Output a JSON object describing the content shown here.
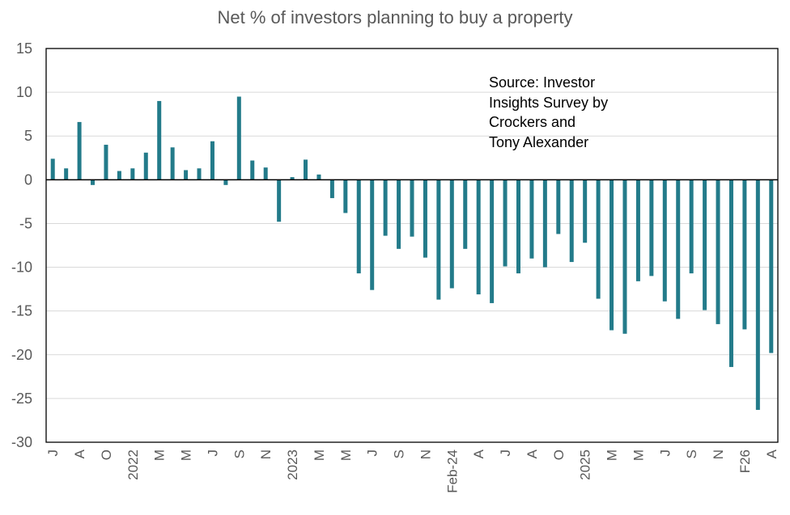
{
  "chart_data": {
    "type": "bar",
    "title": "Net % of investors planning to buy a property",
    "xlabel": "",
    "ylabel": "",
    "ylim": [
      -30,
      15
    ],
    "yticks": [
      15,
      10,
      5,
      0,
      -5,
      -10,
      -15,
      -20,
      -25,
      -30
    ],
    "grid": true,
    "legend": "none",
    "annotation": "Source: Investor\nInsights Survey by\nCrockers and\nTony Alexander",
    "bar_color": "#237B8A",
    "x_tick_labels": [
      {
        "index": 0,
        "label": "J"
      },
      {
        "index": 2,
        "label": "A"
      },
      {
        "index": 4,
        "label": "O"
      },
      {
        "index": 6,
        "label": "2022"
      },
      {
        "index": 8,
        "label": "M"
      },
      {
        "index": 10,
        "label": "M"
      },
      {
        "index": 12,
        "label": "J"
      },
      {
        "index": 14,
        "label": "S"
      },
      {
        "index": 16,
        "label": "N"
      },
      {
        "index": 18,
        "label": "2023"
      },
      {
        "index": 20,
        "label": "M"
      },
      {
        "index": 22,
        "label": "M"
      },
      {
        "index": 24,
        "label": "J"
      },
      {
        "index": 26,
        "label": "S"
      },
      {
        "index": 28,
        "label": "N"
      },
      {
        "index": 30,
        "label": "Feb-24"
      },
      {
        "index": 32,
        "label": "A"
      },
      {
        "index": 34,
        "label": "J"
      },
      {
        "index": 36,
        "label": "A"
      },
      {
        "index": 38,
        "label": "O"
      },
      {
        "index": 40,
        "label": "2025"
      },
      {
        "index": 42,
        "label": "M"
      },
      {
        "index": 44,
        "label": "M"
      },
      {
        "index": 46,
        "label": "J"
      },
      {
        "index": 48,
        "label": "S"
      },
      {
        "index": 50,
        "label": "N"
      },
      {
        "index": 52,
        "label": "F26"
      },
      {
        "index": 54,
        "label": "A"
      }
    ],
    "values": [
      2.4,
      1.3,
      6.6,
      -0.6,
      4.0,
      1.0,
      1.3,
      3.1,
      9.0,
      3.7,
      1.1,
      1.3,
      4.4,
      -0.6,
      9.5,
      2.2,
      1.4,
      -4.8,
      0.3,
      2.3,
      0.6,
      -2.1,
      -3.8,
      -10.7,
      -12.6,
      -6.4,
      -7.9,
      -6.5,
      -8.9,
      -13.7,
      -12.4,
      -7.9,
      -13.1,
      -14.1,
      -9.9,
      -10.7,
      -9.0,
      -10.0,
      -6.2,
      -9.4,
      -7.2,
      -13.6,
      -17.2,
      -17.6,
      -11.6,
      -11.0,
      -13.9,
      -15.9,
      -10.7,
      -14.9,
      -16.5,
      -21.4,
      -17.1,
      -26.3,
      -19.8
    ]
  }
}
